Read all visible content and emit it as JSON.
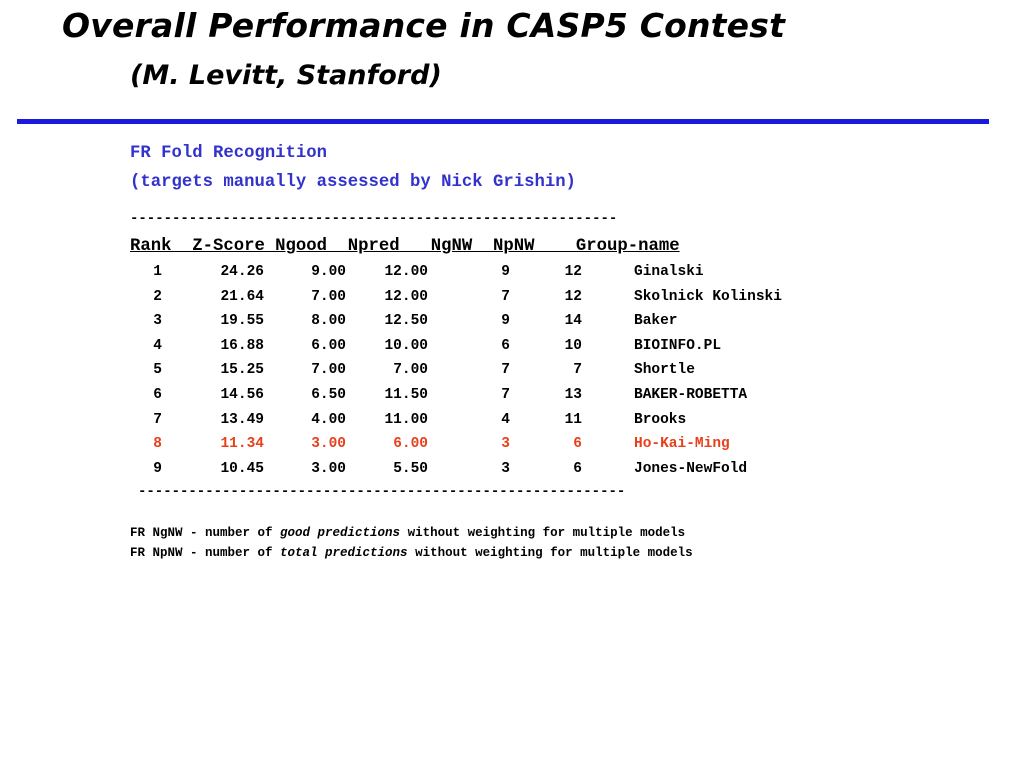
{
  "title": "Overall Performance in CASP5 Contest",
  "subtitle": "(M. Levitt, Stanford)",
  "section": {
    "heading": "FR Fold Recognition",
    "subheading": "(targets manually assessed by Nick Grishin)"
  },
  "table": {
    "divider_top": "----------------------------------------------------------",
    "divider_bottom": "----------------------------------------------------------",
    "header": "Rank  Z-Score Ngood  Npred   NgNW  NpNW    Group-name",
    "rows": [
      {
        "rank": "1",
        "zscore": "24.26",
        "ngood": "9.00",
        "npred": "12.00",
        "ngnw": "9",
        "npnw": "12",
        "group": "Ginalski"
      },
      {
        "rank": "2",
        "zscore": "21.64",
        "ngood": "7.00",
        "npred": "12.00",
        "ngnw": "7",
        "npnw": "12",
        "group": "Skolnick Kolinski"
      },
      {
        "rank": "3",
        "zscore": "19.55",
        "ngood": "8.00",
        "npred": "12.50",
        "ngnw": "9",
        "npnw": "14",
        "group": "Baker"
      },
      {
        "rank": "4",
        "zscore": "16.88",
        "ngood": "6.00",
        "npred": "10.00",
        "ngnw": "6",
        "npnw": "10",
        "group": "BIOINFO.PL"
      },
      {
        "rank": "5",
        "zscore": "15.25",
        "ngood": "7.00",
        "npred": "7.00",
        "ngnw": "7",
        "npnw": "7",
        "group": "Shortle"
      },
      {
        "rank": "6",
        "zscore": "14.56",
        "ngood": "6.50",
        "npred": "11.50",
        "ngnw": "7",
        "npnw": "13",
        "group": "BAKER-ROBETTA"
      },
      {
        "rank": "7",
        "zscore": "13.49",
        "ngood": "4.00",
        "npred": "11.00",
        "ngnw": "4",
        "npnw": "11",
        "group": "Brooks"
      },
      {
        "rank": "8",
        "zscore": "11.34",
        "ngood": "3.00",
        "npred": "6.00",
        "ngnw": "3",
        "npnw": "6",
        "group": "Ho-Kai-Ming",
        "highlight": true
      },
      {
        "rank": "9",
        "zscore": "10.45",
        "ngood": "3.00",
        "npred": "5.50",
        "ngnw": "3",
        "npnw": "6",
        "group": "Jones-NewFold"
      }
    ]
  },
  "footnotes": [
    {
      "prefix": "FR NgNW - number of ",
      "emphasis": "good predictions",
      "suffix": " without weighting for multiple models"
    },
    {
      "prefix": "FR NpNW - number of ",
      "emphasis": "total predictions",
      "suffix": " without weighting for multiple models"
    }
  ],
  "colors": {
    "heading": "#3333cc",
    "rule": "#1a1adf",
    "highlight": "#e8401c",
    "text": "#000000"
  }
}
